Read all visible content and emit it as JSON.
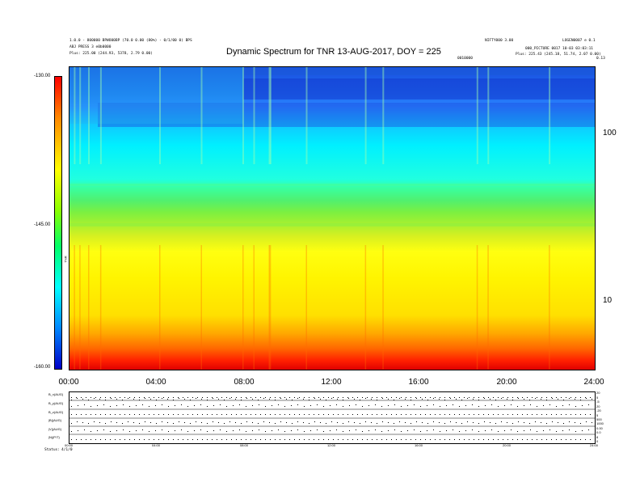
{
  "header": {
    "left_line_1": "1.0.0 - 800000 BPWO00BP (70.0 0.00 (80%) - 0/1/00 0) BPS",
    "left_line_2": "ABJ PRESS 3 e0b0000",
    "left_line_3": "Plus:    225.00 (244.93, 5378, 2.79 0.00)",
    "right_line_1_a": "NIFTY000 3.00",
    "right_line_1_b": "LOGEN0007 e 0.1",
    "right_line_2": "000_PICTURE  0017 10-03 03:03:11",
    "right_line_3": "Plus:   225.43 (245.18, 51.74, 2.07 0.00)",
    "center_small": "0010000",
    "right_small": "0.13"
  },
  "chart_data": {
    "type": "heatmap",
    "title": "Dynamic Spectrum for TNR 13-AUG-2017, DOY = 225",
    "x_tick_labels": [
      "00:00",
      "04:00",
      "08:00",
      "12:00",
      "16:00",
      "20:00",
      "24:00"
    ],
    "x_range": [
      0,
      24
    ],
    "y_tick_labels": [
      "100",
      "10"
    ],
    "y_scale": "log",
    "colorbar": {
      "tick_labels": [
        "-130.00",
        "-145.00",
        "-160.00"
      ],
      "range": [
        -160,
        -130
      ],
      "label": "TNR"
    },
    "colors": [
      "#ff0000",
      "#ffff00",
      "#00ff66",
      "#00ffff",
      "#0000c8"
    ],
    "vertical_streak_hours": [
      0.2,
      0.45,
      0.85,
      1.4,
      4.1,
      6.0,
      7.9,
      8.4,
      9.1,
      9.15,
      10.8,
      13.5,
      14.3,
      18.6,
      19.1,
      21.9
    ]
  },
  "panels": {
    "left_labels": [
      "B_x(AUG)",
      "B_y(AUG)",
      "B_z(AUG)",
      "|B|(AUG)",
      "|V|(AUG)",
      "|N|(P/T)"
    ],
    "right_labels": [
      "20",
      "5",
      "-5",
      "20",
      "-20",
      "5",
      "500",
      "1000",
      "0.00",
      "0.0",
      "8",
      "0"
    ],
    "x_tick_labels": [
      "00:00",
      "04:00",
      "08:00",
      "12:00",
      "16:00",
      "20:00",
      "24:00"
    ],
    "footer_left": "Status:",
    "footer_value": "4/1/0"
  }
}
